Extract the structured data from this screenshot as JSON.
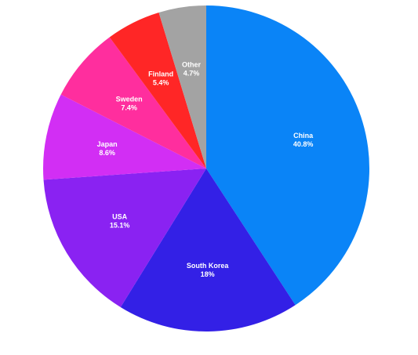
{
  "chart_data": {
    "type": "pie",
    "start": "12 o'clock",
    "direction": "clockwise",
    "slices": [
      {
        "label": "China",
        "value_text": "40.8%",
        "value": 40.8,
        "color": "#0a84f7"
      },
      {
        "label": "South Korea",
        "value_text": "18%",
        "value": 18,
        "color": "#3320e6"
      },
      {
        "label": "USA",
        "value_text": "15.1%",
        "value": 15.1,
        "color": "#8a22f2"
      },
      {
        "label": "Japan",
        "value_text": "8.6%",
        "value": 8.6,
        "color": "#d22ef4"
      },
      {
        "label": "Sweden",
        "value_text": "7.4%",
        "value": 7.4,
        "color": "#ff2e9e"
      },
      {
        "label": "Finland",
        "value_text": "5.4%",
        "value": 5.4,
        "color": "#ff2626"
      },
      {
        "label": "Other",
        "value_text": "4.7%",
        "value": 4.7,
        "color": "#a3a3a3"
      }
    ]
  }
}
